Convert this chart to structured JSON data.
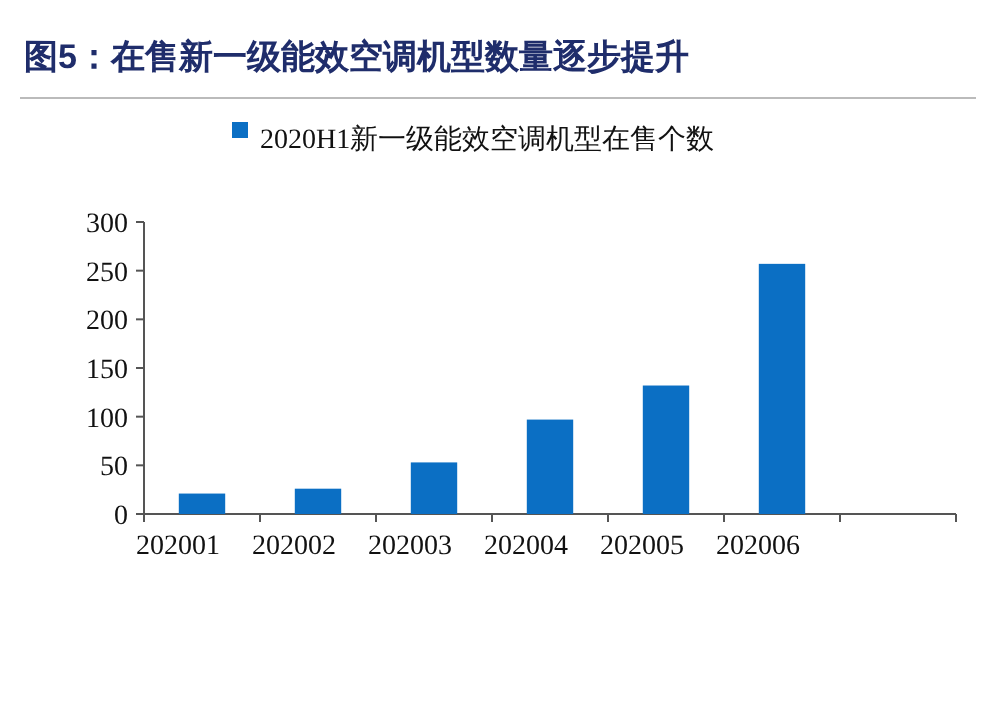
{
  "chart_data": {
    "type": "bar",
    "title": "图5：在售新一级能效空调机型数量逐步提升",
    "categories": [
      "202001",
      "202002",
      "202003",
      "202004",
      "202005",
      "202006",
      null
    ],
    "series": [
      {
        "name": "2020H1新一级能效空调机型在售个数",
        "color": "#0b6fc4",
        "values": [
          21,
          26,
          53,
          97,
          132,
          257,
          null
        ]
      }
    ],
    "ylim": [
      0,
      300
    ],
    "yticks": [
      0,
      50,
      100,
      150,
      200,
      250,
      300
    ],
    "grid": false,
    "legend": "top left"
  }
}
